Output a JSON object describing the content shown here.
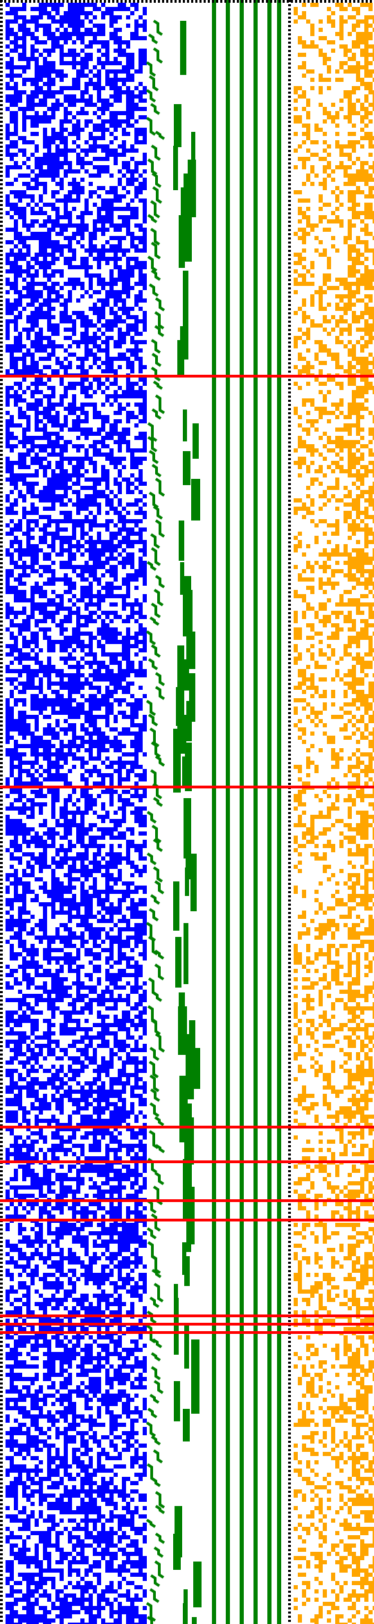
{
  "colors": {
    "blue": "#0000ff",
    "green": "#008000",
    "orange": "#ffa500",
    "red": "#ff0000",
    "black": "#000000",
    "background": "#ffffff"
  }
}
